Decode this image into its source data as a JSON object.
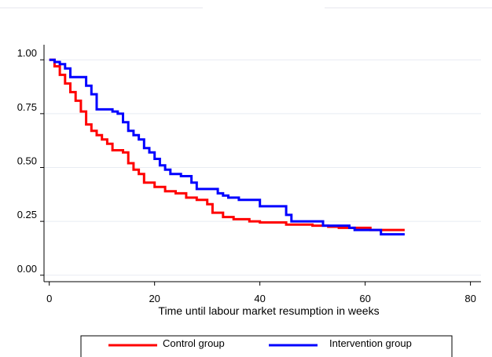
{
  "chart_data": {
    "type": "line",
    "title": "",
    "xlabel": "Time until labour market resumption in weeks",
    "ylabel": "",
    "xlim": [
      -1,
      82
    ],
    "ylim": [
      -0.03,
      1.07
    ],
    "x_ticks": [
      0,
      20,
      40,
      60,
      80
    ],
    "y_ticks": [
      0.0,
      0.25,
      0.5,
      0.75,
      1.0
    ],
    "x_tick_labels": [
      "0",
      "20",
      "40",
      "60",
      "80"
    ],
    "y_tick_labels": [
      "0.00",
      "0.25",
      "0.50",
      "0.75",
      "1.00"
    ],
    "grid": "horizontal",
    "legend_position": "bottom",
    "series": [
      {
        "name": "Control group",
        "color": "#ff0000",
        "step": true,
        "x": [
          0,
          1,
          2,
          3,
          4,
          5,
          6,
          7,
          8,
          9,
          10,
          11,
          12,
          14,
          15,
          16,
          17,
          18,
          20,
          22,
          24,
          26,
          28,
          30,
          31,
          33,
          35,
          38,
          40,
          45,
          50,
          53,
          55,
          58,
          61,
          62,
          67.5
        ],
        "y": [
          1.0,
          0.97,
          0.93,
          0.89,
          0.85,
          0.81,
          0.76,
          0.7,
          0.67,
          0.65,
          0.63,
          0.61,
          0.58,
          0.57,
          0.52,
          0.49,
          0.47,
          0.43,
          0.41,
          0.39,
          0.38,
          0.36,
          0.35,
          0.33,
          0.29,
          0.27,
          0.26,
          0.25,
          0.245,
          0.235,
          0.23,
          0.225,
          0.22,
          0.22,
          0.21,
          0.21,
          0.21
        ]
      },
      {
        "name": "Intervention group",
        "color": "#0000ff",
        "step": true,
        "x": [
          0,
          1,
          2,
          3,
          4,
          7,
          8,
          9,
          12,
          13,
          14,
          15,
          16,
          17,
          18,
          19,
          20,
          21,
          22,
          23,
          25,
          27,
          28,
          32,
          33,
          34,
          36,
          40,
          45,
          46,
          52,
          57,
          58,
          63,
          67.5
        ],
        "y": [
          1.0,
          0.99,
          0.98,
          0.96,
          0.92,
          0.88,
          0.84,
          0.77,
          0.76,
          0.75,
          0.71,
          0.67,
          0.65,
          0.63,
          0.59,
          0.57,
          0.54,
          0.51,
          0.49,
          0.47,
          0.46,
          0.43,
          0.4,
          0.38,
          0.37,
          0.36,
          0.35,
          0.32,
          0.28,
          0.25,
          0.23,
          0.22,
          0.21,
          0.19,
          0.19
        ]
      }
    ]
  }
}
